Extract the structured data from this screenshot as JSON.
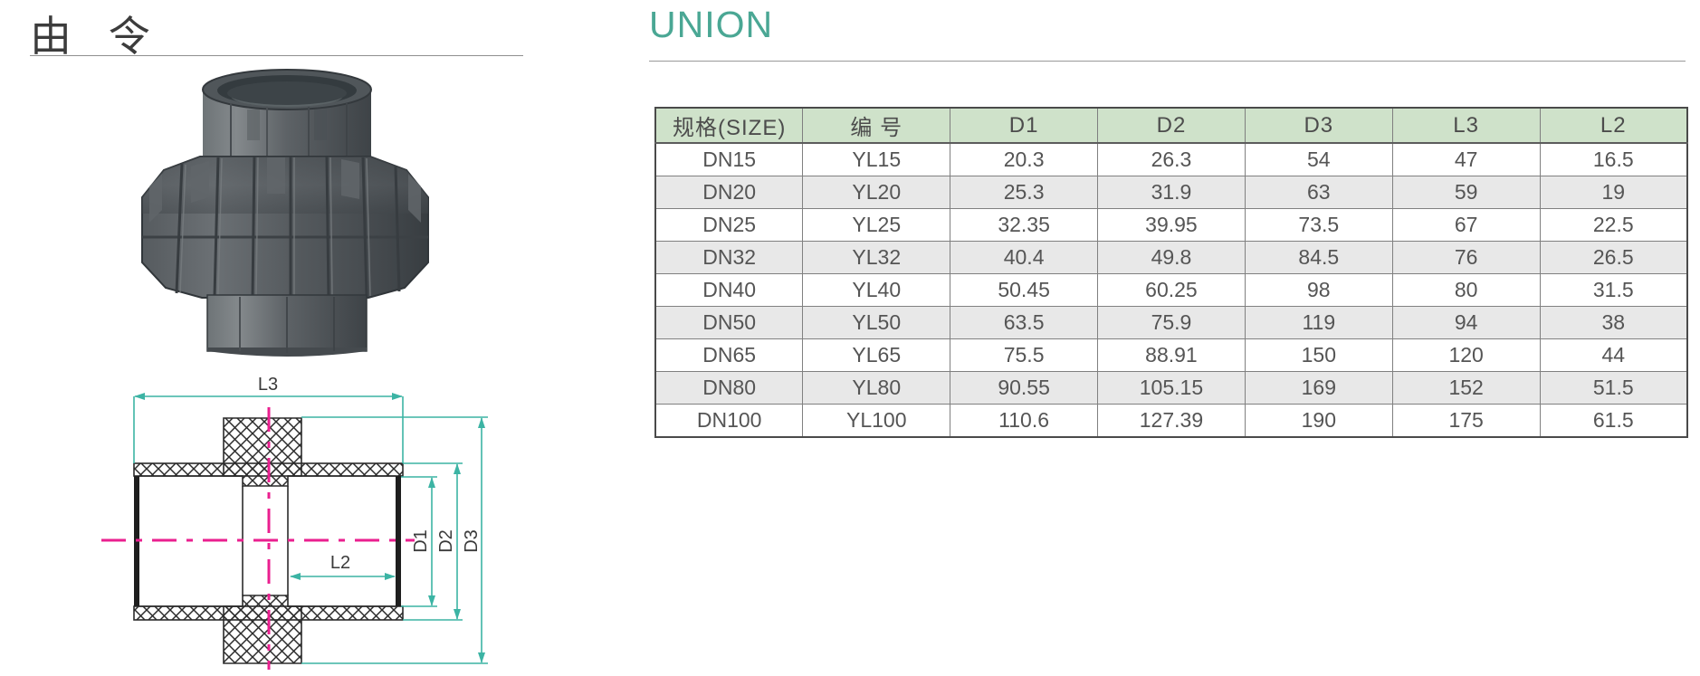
{
  "page": {
    "title_cn": "由 令",
    "title_en": "UNION",
    "accent_color": "#4aa794"
  },
  "table": {
    "headers": [
      "规格(SIZE)",
      "编 号",
      "D1",
      "D2",
      "D3",
      "L3",
      "L2"
    ],
    "rows": [
      [
        "DN15",
        "YL15",
        "20.3",
        "26.3",
        "54",
        "47",
        "16.5"
      ],
      [
        "DN20",
        "YL20",
        "25.3",
        "31.9",
        "63",
        "59",
        "19"
      ],
      [
        "DN25",
        "YL25",
        "32.35",
        "39.95",
        "73.5",
        "67",
        "22.5"
      ],
      [
        "DN32",
        "YL32",
        "40.4",
        "49.8",
        "84.5",
        "76",
        "26.5"
      ],
      [
        "DN40",
        "YL40",
        "50.45",
        "60.25",
        "98",
        "80",
        "31.5"
      ],
      [
        "DN50",
        "YL50",
        "63.5",
        "75.9",
        "119",
        "94",
        "38"
      ],
      [
        "DN65",
        "YL65",
        "75.5",
        "88.91",
        "150",
        "120",
        "44"
      ],
      [
        "DN80",
        "YL80",
        "90.55",
        "105.15",
        "169",
        "152",
        "51.5"
      ],
      [
        "DN100",
        "YL100",
        "110.6",
        "127.39",
        "190",
        "175",
        "61.5"
      ]
    ],
    "header_bg": "#cfe2ca",
    "alt_row_bg": "#e8e8e8"
  },
  "diagram": {
    "labels": {
      "l3": "L3",
      "l2": "L2",
      "d1": "D1",
      "d2": "D2",
      "d3": "D3"
    },
    "dimension_color": "#3cb4a4",
    "centerline_color": "#ea1f8f"
  },
  "photo": {
    "description": "dark gray PVC union fitting"
  }
}
